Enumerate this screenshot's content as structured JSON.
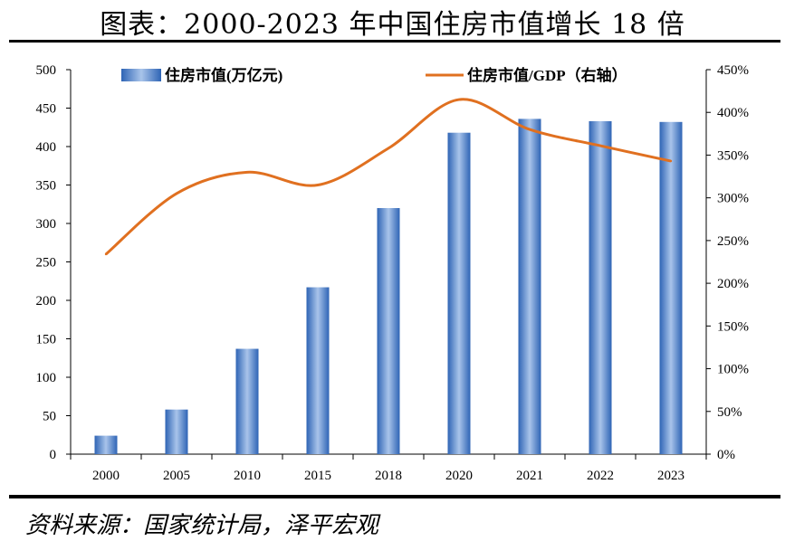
{
  "page": {
    "title": "图表：2000-2023 年中国住房市值增长 18 倍",
    "source": "资料来源：国家统计局，泽平宏观"
  },
  "colors": {
    "bar_fill_dark": "#2e64b5",
    "bar_fill_light": "#a9c4ea",
    "line": "#e07020",
    "axis": "#000000"
  },
  "chart_data": {
    "type": "bar+line",
    "categories": [
      "2000",
      "2005",
      "2010",
      "2015",
      "2018",
      "2020",
      "2021",
      "2022",
      "2023"
    ],
    "series": [
      {
        "name": "住房市值(万亿元)",
        "type": "bar",
        "axis": "left",
        "values": [
          24,
          58,
          137,
          217,
          320,
          418,
          436,
          433,
          432
        ]
      },
      {
        "name": "住房市值/GDP（右轴）",
        "type": "line",
        "axis": "right",
        "values": [
          234,
          305,
          330,
          315,
          358,
          415,
          380,
          361,
          343
        ]
      }
    ],
    "left_axis": {
      "min": 0,
      "max": 500,
      "step": 50,
      "ticks": [
        "0",
        "50",
        "100",
        "150",
        "200",
        "250",
        "300",
        "350",
        "400",
        "450",
        "500"
      ]
    },
    "right_axis": {
      "min": 0,
      "max": 450,
      "step": 50,
      "ticks": [
        "0%",
        "50%",
        "100%",
        "150%",
        "200%",
        "250%",
        "300%",
        "350%",
        "400%",
        "450%"
      ]
    },
    "legend": {
      "bar_label": "住房市值(万亿元)",
      "line_label": "住房市值/GDP（右轴）",
      "placement": "top"
    }
  }
}
